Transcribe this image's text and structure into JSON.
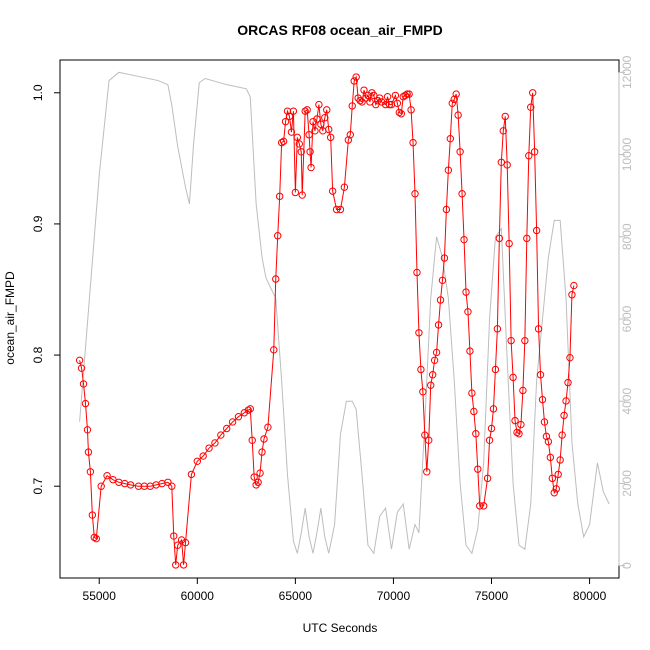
{
  "chart_data": {
    "type": "line",
    "title": "ORCAS RF08 ocean_air_FMPD",
    "xlabel": "UTC Seconds",
    "ylabel": "ocean_air_FMPD",
    "xlim": [
      53000,
      81500
    ],
    "ylim": [
      0.63,
      1.025
    ],
    "y2lim": [
      -300,
      12300
    ],
    "x_ticks": [
      55000,
      60000,
      65000,
      70000,
      75000,
      80000
    ],
    "y_ticks": [
      0.7,
      0.8,
      0.9,
      1.0
    ],
    "y_tick_labels": [
      "0.7",
      "0.8",
      "0.9",
      "1.0"
    ],
    "y2_ticks": [
      0,
      2000,
      4000,
      6000,
      8000,
      10000,
      12000
    ],
    "grid": false,
    "colors": {
      "primary": "#ff0000",
      "secondary": "#bdbdbd",
      "frame": "#000000"
    },
    "series": [
      {
        "axis": "left",
        "style": "line+open-circles",
        "color": "#ff0000",
        "points": [
          [
            54000,
            0.796
          ],
          [
            54100,
            0.79
          ],
          [
            54200,
            0.778
          ],
          [
            54300,
            0.763
          ],
          [
            54400,
            0.743
          ],
          [
            54450,
            0.726
          ],
          [
            54550,
            0.711
          ],
          [
            54650,
            0.678
          ],
          [
            54750,
            0.661
          ],
          [
            54850,
            0.66
          ],
          [
            55100,
            0.7
          ],
          [
            55400,
            0.708
          ],
          [
            55700,
            0.705
          ],
          [
            56000,
            0.703
          ],
          [
            56300,
            0.702
          ],
          [
            56600,
            0.701
          ],
          [
            57000,
            0.7
          ],
          [
            57300,
            0.7
          ],
          [
            57600,
            0.7
          ],
          [
            57900,
            0.701
          ],
          [
            58200,
            0.702
          ],
          [
            58500,
            0.703
          ],
          [
            58700,
            0.7
          ],
          [
            58800,
            0.662
          ],
          [
            58900,
            0.64
          ],
          [
            59000,
            0.655
          ],
          [
            59200,
            0.659
          ],
          [
            59300,
            0.64
          ],
          [
            59400,
            0.657
          ],
          [
            59700,
            0.709
          ],
          [
            60000,
            0.719
          ],
          [
            60300,
            0.723
          ],
          [
            60600,
            0.729
          ],
          [
            60900,
            0.733
          ],
          [
            61200,
            0.739
          ],
          [
            61500,
            0.744
          ],
          [
            61800,
            0.749
          ],
          [
            62100,
            0.753
          ],
          [
            62400,
            0.756
          ],
          [
            62600,
            0.758
          ],
          [
            62700,
            0.759
          ],
          [
            62800,
            0.735
          ],
          [
            62900,
            0.707
          ],
          [
            63000,
            0.701
          ],
          [
            63100,
            0.703
          ],
          [
            63200,
            0.71
          ],
          [
            63300,
            0.726
          ],
          [
            63400,
            0.736
          ],
          [
            63600,
            0.745
          ],
          [
            63900,
            0.804
          ],
          [
            64000,
            0.858
          ],
          [
            64100,
            0.891
          ],
          [
            64200,
            0.921
          ],
          [
            64300,
            0.962
          ],
          [
            64400,
            0.963
          ],
          [
            64500,
            0.978
          ],
          [
            64600,
            0.986
          ],
          [
            64700,
            0.982
          ],
          [
            64800,
            0.97
          ],
          [
            64900,
            0.986
          ],
          [
            65000,
            0.924
          ],
          [
            65100,
            0.966
          ],
          [
            65200,
            0.961
          ],
          [
            65300,
            0.955
          ],
          [
            65350,
            0.922
          ],
          [
            65500,
            0.986
          ],
          [
            65600,
            0.987
          ],
          [
            65700,
            0.968
          ],
          [
            65750,
            0.955
          ],
          [
            65800,
            0.943
          ],
          [
            65900,
            0.978
          ],
          [
            66000,
            0.971
          ],
          [
            66100,
            0.98
          ],
          [
            66200,
            0.991
          ],
          [
            66300,
            0.976
          ],
          [
            66400,
            0.971
          ],
          [
            66500,
            0.981
          ],
          [
            66600,
            0.987
          ],
          [
            66700,
            0.972
          ],
          [
            66800,
            0.966
          ],
          [
            66900,
            0.925
          ],
          [
            67100,
            0.911
          ],
          [
            67300,
            0.911
          ],
          [
            67500,
            0.928
          ],
          [
            67700,
            0.964
          ],
          [
            67800,
            0.968
          ],
          [
            67900,
            0.99
          ],
          [
            68000,
            1.009
          ],
          [
            68100,
            1.012
          ],
          [
            68200,
            0.996
          ],
          [
            68300,
            0.994
          ],
          [
            68400,
            0.993
          ],
          [
            68500,
            1.002
          ],
          [
            68600,
            0.996
          ],
          [
            68700,
            0.998
          ],
          [
            68800,
            0.993
          ],
          [
            68900,
            1.0
          ],
          [
            69000,
            0.998
          ],
          [
            69100,
            0.991
          ],
          [
            69200,
            0.994
          ],
          [
            69300,
            0.996
          ],
          [
            69400,
            0.993
          ],
          [
            69600,
            0.991
          ],
          [
            69700,
            0.997
          ],
          [
            69800,
            0.991
          ],
          [
            69900,
            0.991
          ],
          [
            70100,
            0.998
          ],
          [
            70200,
            0.992
          ],
          [
            70300,
            0.985
          ],
          [
            70400,
            0.984
          ],
          [
            70500,
            0.997
          ],
          [
            70600,
            0.998
          ],
          [
            70700,
            0.999
          ],
          [
            70800,
            0.999
          ],
          [
            70900,
            0.987
          ],
          [
            71000,
            0.962
          ],
          [
            71100,
            0.923
          ],
          [
            71200,
            0.863
          ],
          [
            71300,
            0.817
          ],
          [
            71400,
            0.789
          ],
          [
            71500,
            0.772
          ],
          [
            71600,
            0.739
          ],
          [
            71700,
            0.711
          ],
          [
            71800,
            0.735
          ],
          [
            71900,
            0.777
          ],
          [
            72000,
            0.785
          ],
          [
            72100,
            0.796
          ],
          [
            72200,
            0.802
          ],
          [
            72300,
            0.823
          ],
          [
            72400,
            0.842
          ],
          [
            72500,
            0.857
          ],
          [
            72600,
            0.874
          ],
          [
            72700,
            0.911
          ],
          [
            72800,
            0.941
          ],
          [
            72900,
            0.965
          ],
          [
            73000,
            0.992
          ],
          [
            73100,
            0.995
          ],
          [
            73200,
            0.999
          ],
          [
            73300,
            0.983
          ],
          [
            73400,
            0.955
          ],
          [
            73500,
            0.923
          ],
          [
            73600,
            0.888
          ],
          [
            73700,
            0.848
          ],
          [
            73800,
            0.833
          ],
          [
            73900,
            0.803
          ],
          [
            74000,
            0.771
          ],
          [
            74100,
            0.757
          ],
          [
            74200,
            0.74
          ],
          [
            74300,
            0.713
          ],
          [
            74400,
            0.685
          ],
          [
            74600,
            0.685
          ],
          [
            74800,
            0.706
          ],
          [
            74900,
            0.735
          ],
          [
            75000,
            0.744
          ],
          [
            75100,
            0.759
          ],
          [
            75200,
            0.789
          ],
          [
            75300,
            0.82
          ],
          [
            75400,
            0.889
          ],
          [
            75500,
            0.947
          ],
          [
            75600,
            0.971
          ],
          [
            75700,
            0.982
          ],
          [
            75800,
            0.945
          ],
          [
            75900,
            0.885
          ],
          [
            76000,
            0.811
          ],
          [
            76100,
            0.783
          ],
          [
            76200,
            0.75
          ],
          [
            76300,
            0.741
          ],
          [
            76400,
            0.74
          ],
          [
            76500,
            0.747
          ],
          [
            76600,
            0.773
          ],
          [
            76700,
            0.811
          ],
          [
            76800,
            0.889
          ],
          [
            76900,
            0.952
          ],
          [
            77000,
            0.989
          ],
          [
            77100,
            1.0
          ],
          [
            77200,
            0.955
          ],
          [
            77300,
            0.895
          ],
          [
            77400,
            0.82
          ],
          [
            77500,
            0.785
          ],
          [
            77600,
            0.766
          ],
          [
            77700,
            0.749
          ],
          [
            77800,
            0.738
          ],
          [
            77900,
            0.734
          ],
          [
            78000,
            0.722
          ],
          [
            78100,
            0.706
          ],
          [
            78200,
            0.695
          ],
          [
            78300,
            0.698
          ],
          [
            78400,
            0.709
          ],
          [
            78500,
            0.72
          ],
          [
            78600,
            0.739
          ],
          [
            78700,
            0.754
          ],
          [
            78800,
            0.765
          ],
          [
            78900,
            0.779
          ],
          [
            79000,
            0.798
          ],
          [
            79100,
            0.846
          ],
          [
            79200,
            0.853
          ]
        ]
      },
      {
        "axis": "right",
        "style": "line",
        "color": "#bdbdbd",
        "points": [
          [
            54000,
            3500
          ],
          [
            54500,
            6500
          ],
          [
            55000,
            9500
          ],
          [
            55500,
            11800
          ],
          [
            56000,
            12000
          ],
          [
            57000,
            11900
          ],
          [
            58000,
            11800
          ],
          [
            58500,
            11700
          ],
          [
            58700,
            11200
          ],
          [
            59000,
            10200
          ],
          [
            59400,
            9200
          ],
          [
            59600,
            8800
          ],
          [
            59800,
            10200
          ],
          [
            60100,
            11750
          ],
          [
            60400,
            11850
          ],
          [
            61500,
            11700
          ],
          [
            62500,
            11600
          ],
          [
            62700,
            11400
          ],
          [
            63000,
            8800
          ],
          [
            63300,
            7500
          ],
          [
            63500,
            7000
          ],
          [
            63700,
            6800
          ],
          [
            64000,
            6500
          ],
          [
            64300,
            4500
          ],
          [
            64600,
            2200
          ],
          [
            64900,
            600
          ],
          [
            65100,
            300
          ],
          [
            65300,
            800
          ],
          [
            65500,
            1400
          ],
          [
            65700,
            700
          ],
          [
            65900,
            300
          ],
          [
            66100,
            800
          ],
          [
            66300,
            1400
          ],
          [
            66500,
            700
          ],
          [
            66700,
            300
          ],
          [
            67000,
            1000
          ],
          [
            67300,
            3200
          ],
          [
            67600,
            4000
          ],
          [
            67900,
            4000
          ],
          [
            68100,
            3800
          ],
          [
            68400,
            2200
          ],
          [
            68700,
            500
          ],
          [
            69000,
            300
          ],
          [
            69300,
            1200
          ],
          [
            69600,
            1400
          ],
          [
            69900,
            400
          ],
          [
            70200,
            1300
          ],
          [
            70500,
            1500
          ],
          [
            70800,
            400
          ],
          [
            71100,
            1000
          ],
          [
            71300,
            800
          ],
          [
            71600,
            3500
          ],
          [
            71900,
            6500
          ],
          [
            72200,
            8000
          ],
          [
            72500,
            7500
          ],
          [
            72800,
            6500
          ],
          [
            73100,
            4500
          ],
          [
            73400,
            2000
          ],
          [
            73700,
            500
          ],
          [
            74000,
            300
          ],
          [
            74300,
            900
          ],
          [
            74600,
            2500
          ],
          [
            74900,
            6000
          ],
          [
            75200,
            8000
          ],
          [
            75500,
            8200
          ],
          [
            75800,
            5000
          ],
          [
            76100,
            2000
          ],
          [
            76400,
            500
          ],
          [
            76700,
            400
          ],
          [
            77000,
            1500
          ],
          [
            77300,
            4500
          ],
          [
            77600,
            6000
          ],
          [
            77900,
            7500
          ],
          [
            78200,
            8400
          ],
          [
            78500,
            8400
          ],
          [
            78800,
            6500
          ],
          [
            79100,
            3000
          ],
          [
            79400,
            1500
          ],
          [
            79700,
            700
          ],
          [
            80000,
            1000
          ],
          [
            80400,
            2500
          ],
          [
            80700,
            1800
          ],
          [
            81000,
            1500
          ]
        ]
      }
    ]
  }
}
